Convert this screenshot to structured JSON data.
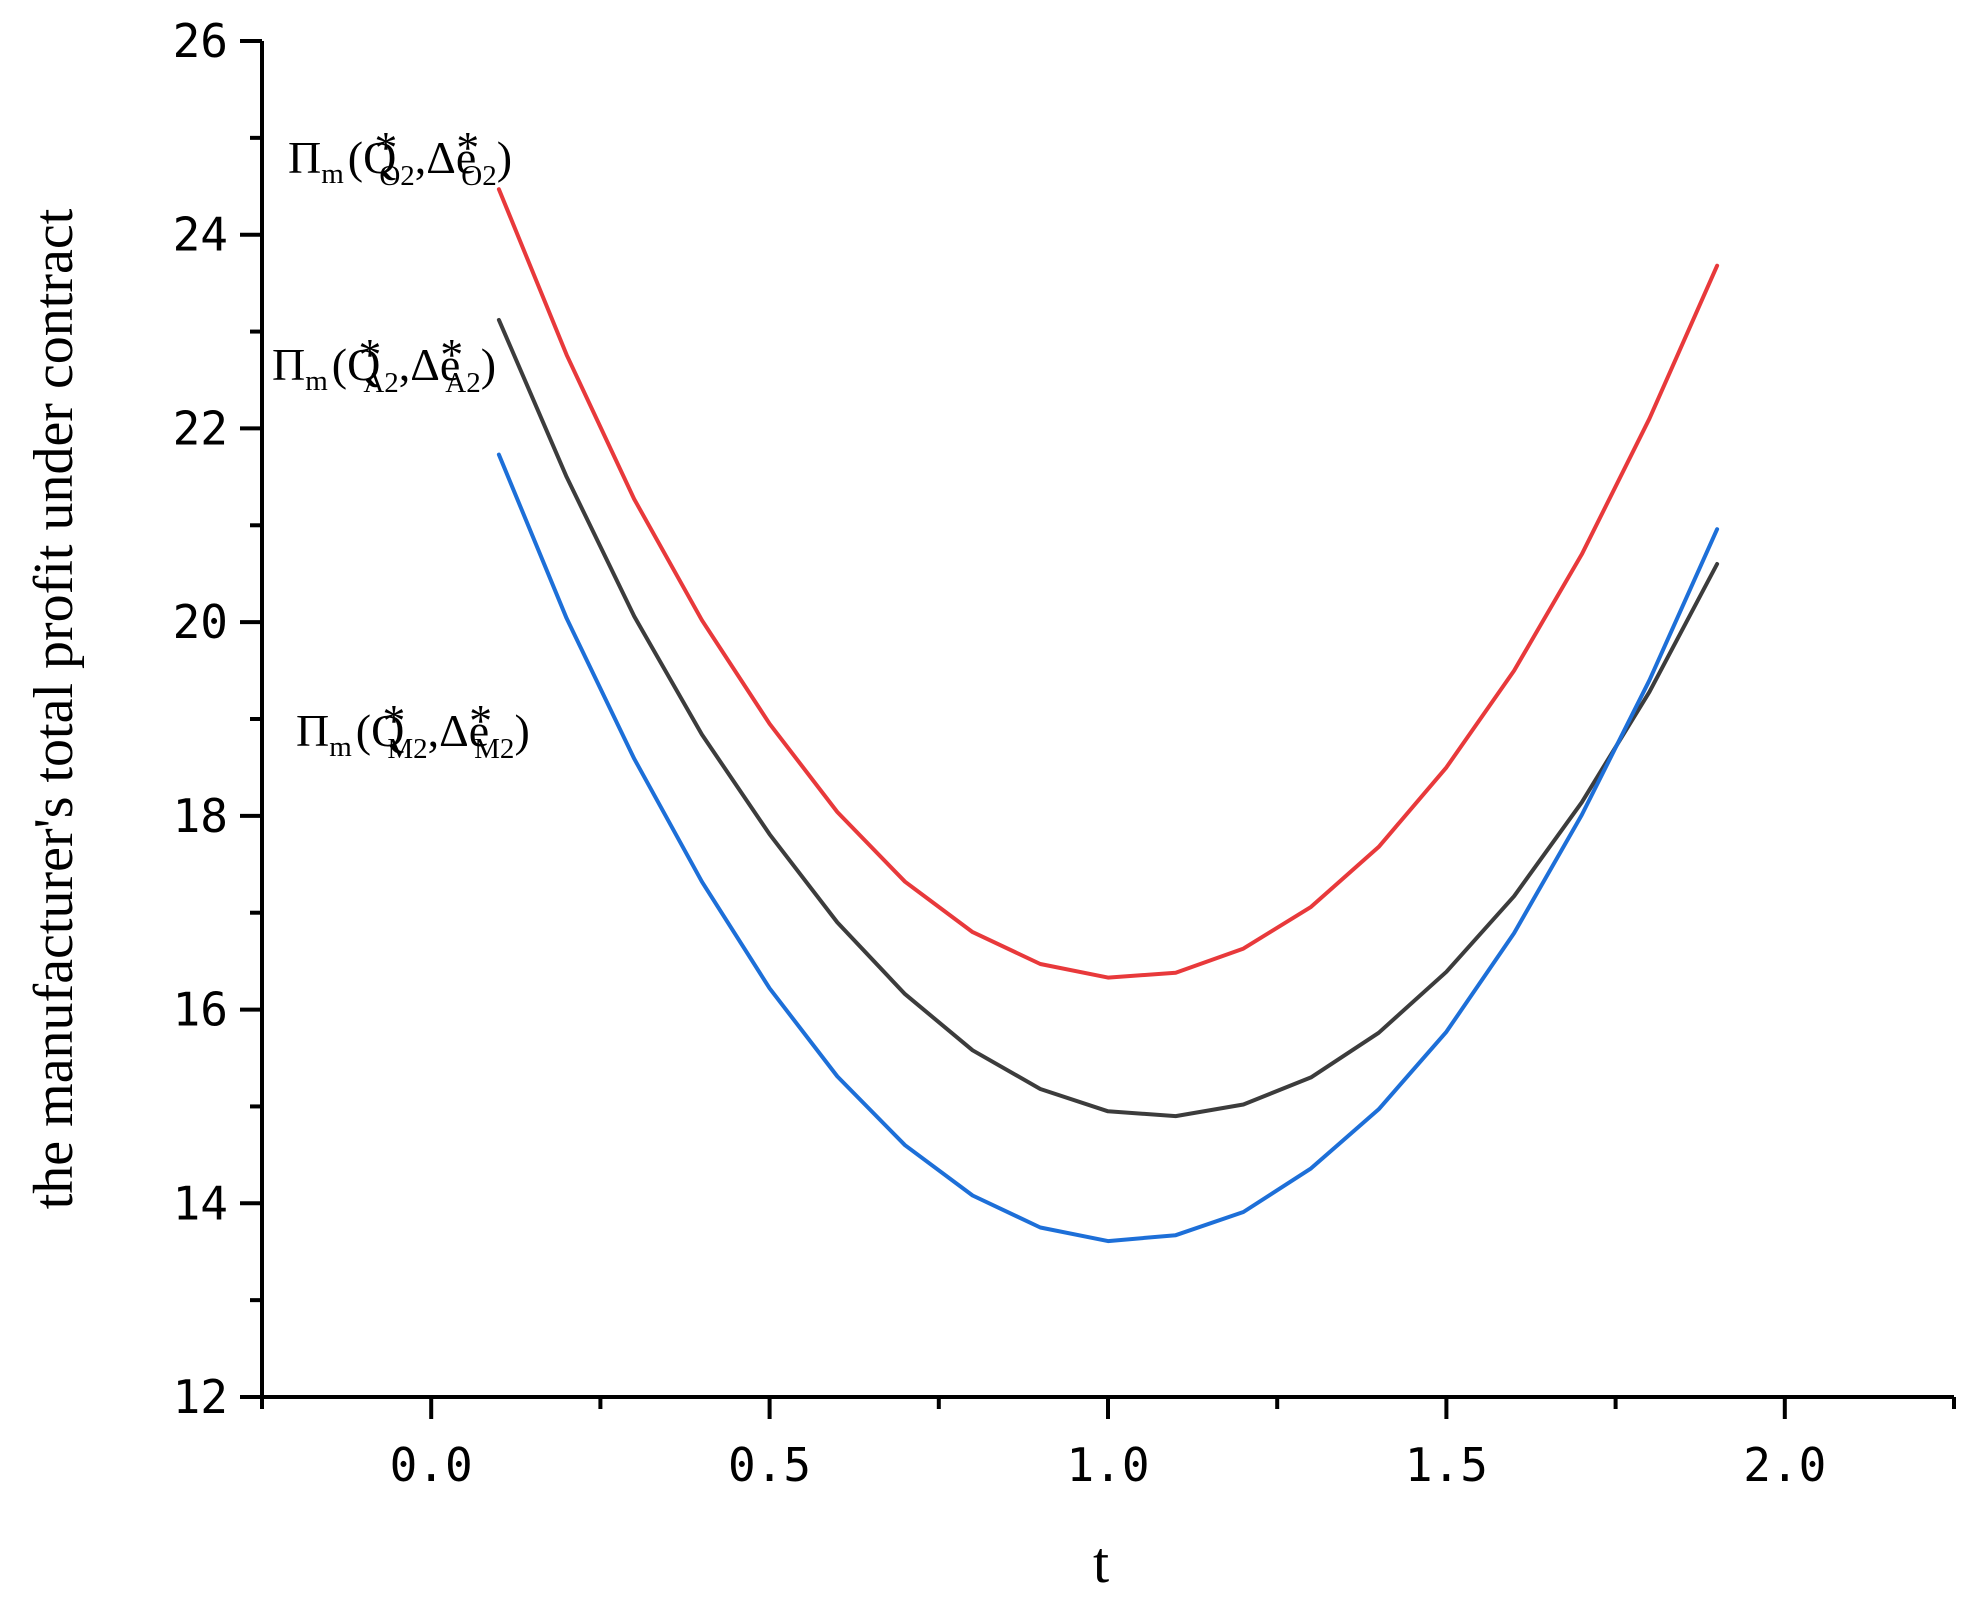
{
  "chart_data": {
    "type": "line",
    "xlabel": "t",
    "ylabel": "the manufacturer's total profit under contract",
    "xlim": [
      -0.25,
      2.25
    ],
    "ylim": [
      12,
      26
    ],
    "xticks": [
      0.0,
      0.5,
      1.0,
      1.5,
      2.0
    ],
    "xtick_labels": [
      "0.0",
      "0.5",
      "1.0",
      "1.5",
      "2.0"
    ],
    "yticks": [
      12,
      14,
      16,
      18,
      20,
      22,
      24,
      26
    ],
    "ytick_labels": [
      "12",
      "14",
      "16",
      "18",
      "20",
      "22",
      "24",
      "26"
    ],
    "grid": false,
    "legend": "none",
    "x": [
      0.1,
      0.2,
      0.3,
      0.4,
      0.5,
      0.6,
      0.7,
      0.8,
      0.9,
      1.0,
      1.1,
      1.2,
      1.3,
      1.4,
      1.5,
      1.6,
      1.7,
      1.8,
      1.9
    ],
    "series": [
      {
        "name": "Πm(Q*O2,Δe*O2)",
        "label": {
          "main": "Π",
          "sub1": "m",
          "open": "(Q",
          "sup1": "*",
          "sub2": "O2",
          "mid": ",Δe",
          "sup2": "*",
          "sub3": "O2",
          "close": ")"
        },
        "color": "#e8393b",
        "values": [
          24.47,
          22.76,
          21.27,
          20.02,
          18.95,
          18.04,
          17.32,
          16.8,
          16.47,
          16.33,
          16.38,
          16.63,
          17.06,
          17.68,
          18.5,
          19.5,
          20.7,
          22.1,
          23.68
        ]
      },
      {
        "name": "Πm(Q*A2,Δe*A2)",
        "label": {
          "main": "Π",
          "sub1": "m",
          "open": "(Q",
          "sup1": "*",
          "sub2": "A2",
          "mid": ",Δe",
          "sup2": "*",
          "sub3": "A2",
          "close": ")"
        },
        "color": "#3c3c3c",
        "values": [
          23.12,
          21.5,
          20.06,
          18.84,
          17.81,
          16.9,
          16.16,
          15.58,
          15.18,
          14.95,
          14.9,
          15.02,
          15.3,
          15.76,
          16.39,
          17.17,
          18.14,
          19.28,
          20.6
        ]
      },
      {
        "name": "Πm(Q*M2,Δe*M2)",
        "label": {
          "main": "Π",
          "sub1": "m",
          "open": "(Q",
          "sup1": "*",
          "sub2": "M2",
          "mid": ",Δe",
          "sup2": "*",
          "sub3": "M2",
          "close": ")"
        },
        "color": "#1d6fd8",
        "values": [
          21.73,
          20.04,
          18.59,
          17.32,
          16.22,
          15.31,
          14.6,
          14.08,
          13.75,
          13.61,
          13.67,
          13.91,
          14.36,
          14.97,
          15.77,
          16.79,
          18.01,
          19.4,
          20.96
        ]
      }
    ]
  }
}
